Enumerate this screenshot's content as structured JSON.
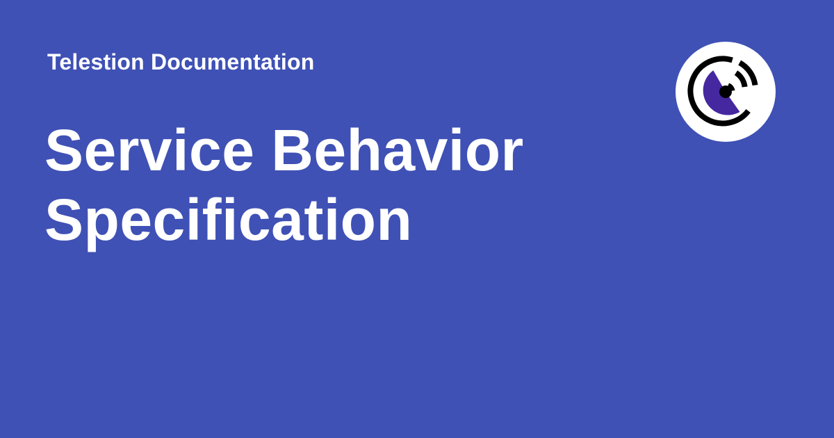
{
  "site": {
    "name": "Telestion Documentation"
  },
  "page": {
    "title_lines": [
      "Service Behavior",
      "Specification"
    ]
  },
  "logo": {
    "icon": "telestion-logo-icon",
    "badge_color": "#ffffff",
    "accent_color": "#4527a0",
    "ring_color": "#000000"
  },
  "colors": {
    "background": "#3f51b5",
    "text": "#ffffff"
  }
}
